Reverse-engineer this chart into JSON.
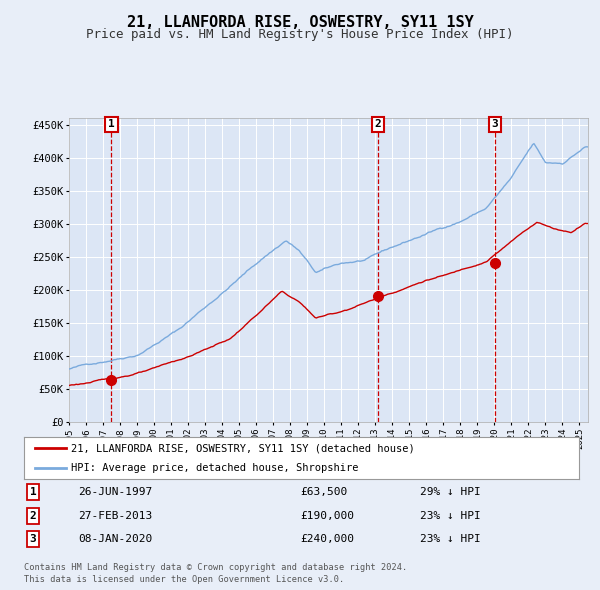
{
  "title": "21, LLANFORDA RISE, OSWESTRY, SY11 1SY",
  "subtitle": "Price paid vs. HM Land Registry's House Price Index (HPI)",
  "title_fontsize": 11,
  "subtitle_fontsize": 9,
  "background_color": "#e8eef8",
  "plot_bg_color": "#dce6f5",
  "grid_color": "#ffffff",
  "sale_color": "#cc0000",
  "hpi_color": "#7aaadd",
  "ylim": [
    0,
    460000
  ],
  "yticks": [
    0,
    50000,
    100000,
    150000,
    200000,
    250000,
    300000,
    350000,
    400000,
    450000
  ],
  "ytick_labels": [
    "£0",
    "£50K",
    "£100K",
    "£150K",
    "£200K",
    "£250K",
    "£300K",
    "£350K",
    "£400K",
    "£450K"
  ],
  "sales": [
    {
      "date": 1997.49,
      "price": 63500,
      "label": "1"
    },
    {
      "date": 2013.16,
      "price": 190000,
      "label": "2"
    },
    {
      "date": 2020.02,
      "price": 240000,
      "label": "3"
    }
  ],
  "sale_dates_str": [
    "26-JUN-1997",
    "27-FEB-2013",
    "08-JAN-2020"
  ],
  "sale_prices_str": [
    "£63,500",
    "£190,000",
    "£240,000"
  ],
  "sale_hpi_pct": [
    "29% ↓ HPI",
    "23% ↓ HPI",
    "23% ↓ HPI"
  ],
  "legend_sale_label": "21, LLANFORDA RISE, OSWESTRY, SY11 1SY (detached house)",
  "legend_hpi_label": "HPI: Average price, detached house, Shropshire",
  "footer_line1": "Contains HM Land Registry data © Crown copyright and database right 2024.",
  "footer_line2": "This data is licensed under the Open Government Licence v3.0.",
  "xmin": 1995.0,
  "xmax": 2025.5
}
